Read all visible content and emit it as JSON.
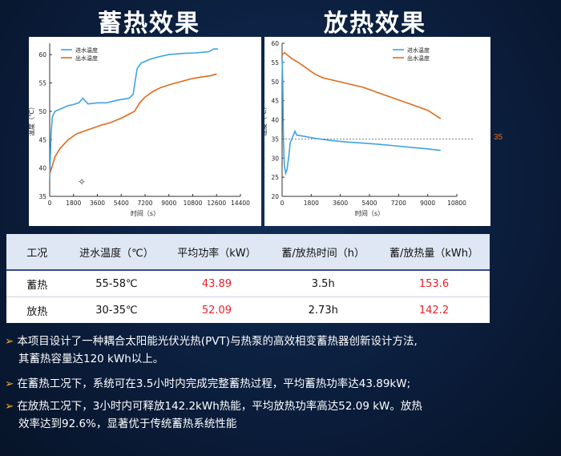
{
  "titles": {
    "storage": "蓄热效果",
    "release": "放热效果"
  },
  "chart_data": [
    {
      "type": "line",
      "xlabel": "时间（s）",
      "ylabel": "温度（℃）",
      "xlim": [
        0,
        14400
      ],
      "ylim": [
        35,
        62
      ],
      "xticks": [
        0,
        1800,
        3600,
        5400,
        7200,
        9000,
        10800,
        12600,
        14400
      ],
      "yticks": [
        35,
        40,
        45,
        50,
        55,
        60
      ],
      "legend": "top-left",
      "series": [
        {
          "name": "进水温度",
          "color": "#3fa2e0",
          "x": [
            0,
            100,
            200,
            400,
            900,
            1400,
            1800,
            2200,
            2500,
            2900,
            3600,
            4300,
            5200,
            6000,
            6300,
            6600,
            6900,
            7200,
            7600,
            8200,
            9000,
            10000,
            11000,
            12000,
            12400,
            12700
          ],
          "y": [
            38,
            46,
            49,
            50,
            50.5,
            51,
            51.2,
            51.5,
            52.3,
            51.3,
            51.5,
            51.5,
            52,
            52.3,
            53,
            57.5,
            58.5,
            58.8,
            59.2,
            59.6,
            60,
            60.2,
            60.3,
            60.5,
            61,
            61
          ]
        },
        {
          "name": "出水温度",
          "color": "#e06a1a",
          "x": [
            0,
            150,
            400,
            800,
            1400,
            2000,
            2600,
            3200,
            3800,
            4600,
            5400,
            6000,
            6400,
            6800,
            7200,
            7800,
            8400,
            9200,
            10000,
            10800,
            11600,
            12200,
            12600
          ],
          "y": [
            39,
            40,
            42,
            43.5,
            45,
            46,
            46.5,
            47,
            47.5,
            48,
            48.8,
            49.5,
            50,
            51.5,
            52.5,
            53.5,
            54.2,
            54.8,
            55.3,
            55.8,
            56.1,
            56.3,
            56.6
          ]
        }
      ]
    },
    {
      "type": "line",
      "xlabel": "时间（s）",
      "ylabel": "温度（℃）",
      "xlim": [
        0,
        10800
      ],
      "ylim": [
        20,
        60
      ],
      "xticks": [
        0,
        1800,
        3600,
        5400,
        7200,
        9000,
        10800
      ],
      "yticks": [
        20,
        25,
        30,
        35,
        40,
        45,
        50,
        55,
        60
      ],
      "legend": "top-right",
      "reference_line": {
        "y": 35,
        "label": "35"
      },
      "series": [
        {
          "name": "进水温度",
          "color": "#3fa2e0",
          "x": [
            0,
            40,
            80,
            140,
            220,
            300,
            400,
            500,
            650,
            800,
            900,
            1200,
            2000,
            3000,
            4000,
            5000,
            6000,
            7000,
            8000,
            9000,
            9800
          ],
          "y": [
            56,
            50,
            35,
            28,
            26,
            27,
            30,
            34,
            35.5,
            37,
            36,
            35.8,
            35.2,
            34.6,
            34.2,
            33.9,
            33.6,
            33.2,
            32.8,
            32.4,
            32
          ]
        },
        {
          "name": "出水温度",
          "color": "#e06a1a",
          "x": [
            0,
            150,
            300,
            600,
            1000,
            1500,
            2000,
            2500,
            3000,
            4000,
            5000,
            6000,
            7000,
            8000,
            9000,
            9800
          ],
          "y": [
            57,
            57.5,
            57,
            56,
            55,
            53.5,
            52,
            51,
            50.5,
            49.5,
            48.5,
            47,
            45.5,
            44,
            42.5,
            40.3
          ]
        }
      ]
    }
  ],
  "table": {
    "headers": [
      "工况",
      "进水温度（℃）",
      "平均功率（kW）",
      "蓄/放热时间（h）",
      "蓄/放热量（kWh）"
    ],
    "rows": [
      [
        "蓄热",
        "55-58℃",
        "43.89",
        "3.5h",
        "153.6"
      ],
      [
        "放热",
        "30-35℃",
        "52.09",
        "2.73h",
        "142.2"
      ]
    ]
  },
  "bullets": [
    {
      "line1": "本项目设计了一种耦合太阳能光伏光热(PVT)与热泵的高效相变蓄热器创新设计方法,",
      "line2": "其蓄热容量达120 kWh以上。"
    },
    {
      "line1": "在蓄热工况下，系统可在3.5小时内完成完整蓄热过程，平均蓄热功率达43.89kW;",
      "line2": ""
    },
    {
      "line1": "在放热工况下，3小时内可释放142.2kWh热能，平均放热功率高达52.09 kW。放热",
      "line2": "效率达到92.6%，显著优于传统蓄热系统性能"
    }
  ],
  "bullet_marker": "➢"
}
